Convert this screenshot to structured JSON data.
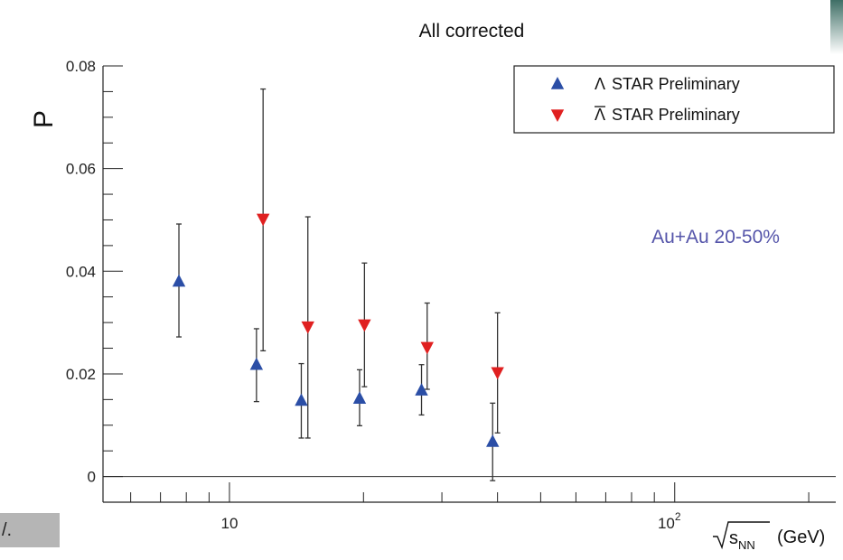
{
  "chart_data": {
    "type": "scatter",
    "title": "All corrected",
    "ylabel": "P",
    "xlabel": {
      "radical": "s",
      "subscript": "NN",
      "unit": "(GeV)"
    },
    "xscale": "log",
    "xlim": [
      5.2,
      230
    ],
    "ylim": [
      -0.005,
      0.08
    ],
    "yticks": [
      0,
      0.02,
      0.04,
      0.06,
      0.08
    ],
    "ytick_labels": [
      "0",
      "0.02",
      "0.04",
      "0.06",
      "0.08"
    ],
    "xticks_major": [
      10,
      100
    ],
    "xtick_labels": [
      {
        "base": "10",
        "exp": ""
      },
      {
        "base": "10",
        "exp": "2"
      }
    ],
    "grid": false,
    "legend_position": "top-right",
    "annotation": {
      "text": "Au+Au 20-50%",
      "color": "#5555aa"
    },
    "series": [
      {
        "name": "Λ STAR Preliminary",
        "name_symbol": "Λ",
        "name_text": "STAR Preliminary",
        "marker": "triangle-up",
        "color": "#2b4ea6",
        "points": [
          {
            "x": 7.7,
            "y": 0.038,
            "ylo": 0.0272,
            "yhi": 0.0492
          },
          {
            "x": 11.5,
            "y": 0.0218,
            "ylo": 0.0146,
            "yhi": 0.0288
          },
          {
            "x": 14.5,
            "y": 0.0148,
            "ylo": 0.0075,
            "yhi": 0.022
          },
          {
            "x": 19.6,
            "y": 0.0152,
            "ylo": 0.0099,
            "yhi": 0.0208
          },
          {
            "x": 27,
            "y": 0.0168,
            "ylo": 0.012,
            "yhi": 0.0218
          },
          {
            "x": 39,
            "y": 0.0068,
            "ylo": -0.0008,
            "yhi": 0.0143
          }
        ]
      },
      {
        "name": "Λ̄ STAR Preliminary",
        "name_symbol": "Λ",
        "name_text": "STAR Preliminary",
        "marker": "triangle-down",
        "color": "#e02020",
        "points": [
          {
            "x": 11.9,
            "y": 0.0502,
            "ylo": 0.0245,
            "yhi": 0.0755
          },
          {
            "x": 15,
            "y": 0.0292,
            "ylo": 0.0075,
            "yhi": 0.0506
          },
          {
            "x": 20.1,
            "y": 0.0296,
            "ylo": 0.0175,
            "yhi": 0.0416
          },
          {
            "x": 27.8,
            "y": 0.0252,
            "ylo": 0.017,
            "yhi": 0.0338
          },
          {
            "x": 40,
            "y": 0.0203,
            "ylo": 0.0085,
            "yhi": 0.0319
          }
        ]
      }
    ]
  },
  "corner_label": "/."
}
